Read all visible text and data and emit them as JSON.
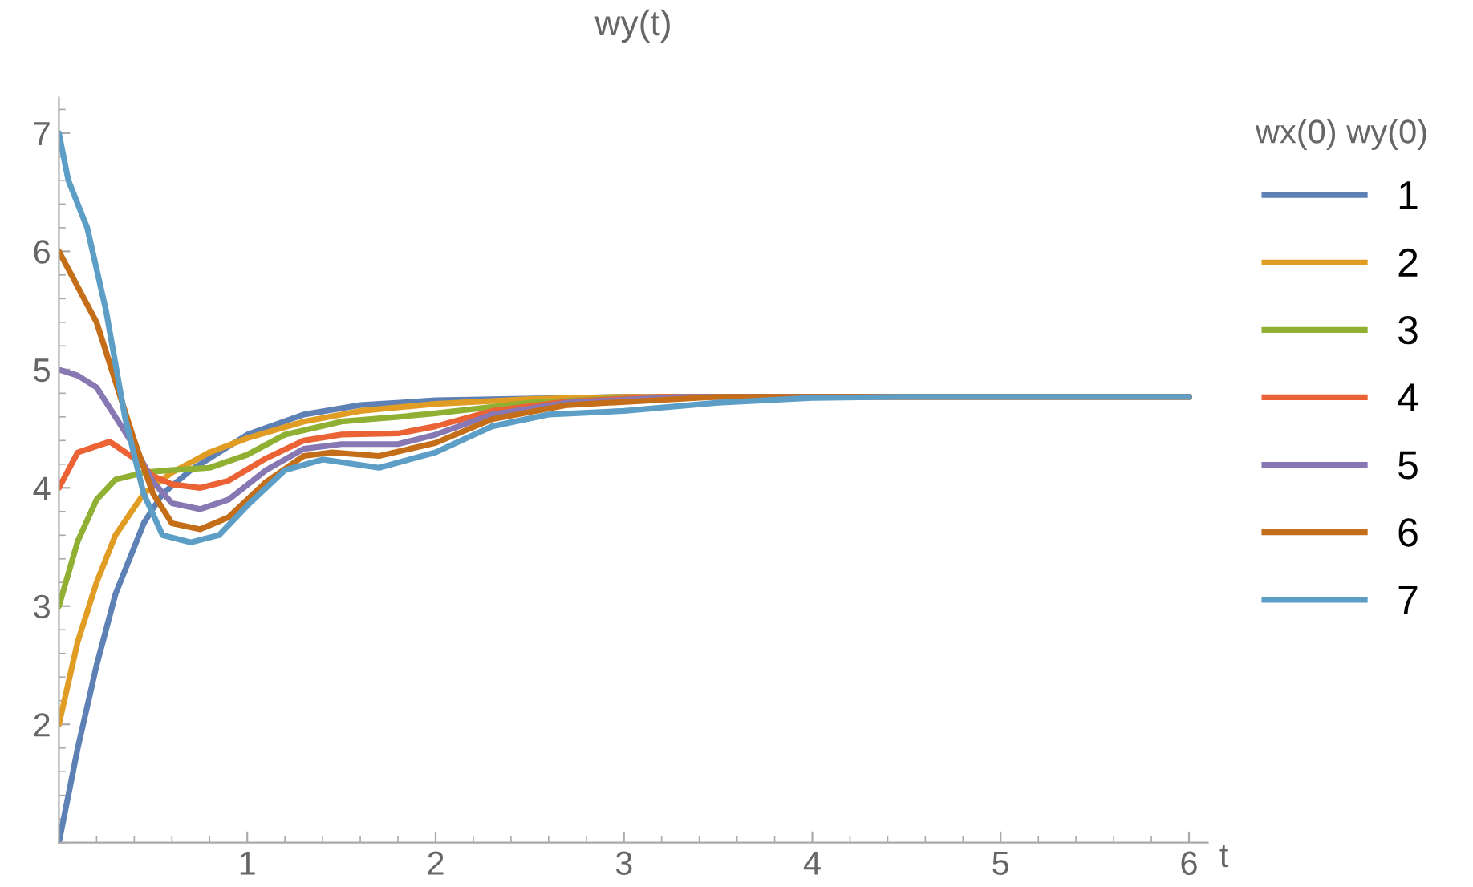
{
  "chart_data": {
    "type": "line",
    "title": "wy(t)",
    "xlabel": "t",
    "legend_title": "wx(0) wy(0)",
    "legend": "right",
    "grid": false,
    "xlim": [
      0,
      6.1
    ],
    "ylim": [
      1,
      7.3
    ],
    "xticks": [
      1,
      2,
      3,
      4,
      5,
      6
    ],
    "yticks": [
      2,
      3,
      4,
      5,
      6,
      7
    ],
    "series": [
      {
        "name": "1",
        "color": "#5e81b5",
        "x": [
          0,
          0.1,
          0.2,
          0.3,
          0.45,
          0.55,
          0.7,
          1,
          1.3,
          1.6,
          2,
          3,
          6
        ],
        "values": [
          1,
          1.8,
          2.5,
          3.1,
          3.7,
          3.95,
          4.15,
          4.45,
          4.62,
          4.7,
          4.74,
          4.77,
          4.77
        ]
      },
      {
        "name": "2",
        "color": "#e19c24",
        "x": [
          0,
          0.1,
          0.2,
          0.3,
          0.45,
          0.6,
          0.8,
          1,
          1.3,
          1.6,
          2,
          2.5,
          3,
          6
        ],
        "values": [
          2,
          2.7,
          3.2,
          3.6,
          3.95,
          4.13,
          4.3,
          4.42,
          4.56,
          4.65,
          4.71,
          4.75,
          4.77,
          4.77
        ]
      },
      {
        "name": "3",
        "color": "#8fb032",
        "x": [
          0,
          0.1,
          0.2,
          0.3,
          0.45,
          0.6,
          0.8,
          1,
          1.2,
          1.5,
          1.8,
          2,
          2.5,
          3,
          3.5,
          6
        ],
        "values": [
          3,
          3.55,
          3.9,
          4.07,
          4.13,
          4.15,
          4.17,
          4.28,
          4.45,
          4.56,
          4.6,
          4.63,
          4.72,
          4.76,
          4.77,
          4.77
        ]
      },
      {
        "name": "4",
        "color": "#eb6235",
        "x": [
          0,
          0.1,
          0.27,
          0.4,
          0.5,
          0.6,
          0.75,
          0.9,
          1.1,
          1.3,
          1.5,
          1.8,
          2,
          2.3,
          2.7,
          3.2,
          6
        ],
        "values": [
          4,
          4.3,
          4.39,
          4.25,
          4.1,
          4.03,
          4.0,
          4.06,
          4.25,
          4.4,
          4.45,
          4.46,
          4.52,
          4.65,
          4.73,
          4.77,
          4.77
        ]
      },
      {
        "name": "5",
        "color": "#8778b3",
        "x": [
          0,
          0.1,
          0.2,
          0.3,
          0.4,
          0.5,
          0.6,
          0.75,
          0.9,
          1.1,
          1.3,
          1.5,
          1.8,
          2,
          2.3,
          2.7,
          3.3,
          6
        ],
        "values": [
          5,
          4.95,
          4.85,
          4.6,
          4.35,
          4.05,
          3.87,
          3.82,
          3.9,
          4.15,
          4.33,
          4.37,
          4.37,
          4.45,
          4.62,
          4.72,
          4.77,
          4.77
        ]
      },
      {
        "name": "6",
        "color": "#c56e1a",
        "x": [
          0,
          0.1,
          0.2,
          0.3,
          0.4,
          0.5,
          0.6,
          0.75,
          0.9,
          1.1,
          1.3,
          1.45,
          1.7,
          2,
          2.3,
          2.7,
          3.5,
          6
        ],
        "values": [
          6,
          5.7,
          5.4,
          4.9,
          4.4,
          3.95,
          3.7,
          3.65,
          3.75,
          4.05,
          4.27,
          4.3,
          4.27,
          4.38,
          4.58,
          4.7,
          4.77,
          4.77
        ]
      },
      {
        "name": "7",
        "color": "#5d9ec7",
        "x": [
          0,
          0.05,
          0.15,
          0.25,
          0.35,
          0.45,
          0.55,
          0.7,
          0.85,
          1.0,
          1.2,
          1.4,
          1.7,
          2,
          2.3,
          2.6,
          3,
          3.5,
          4,
          4.5,
          6
        ],
        "values": [
          7,
          6.6,
          6.2,
          5.5,
          4.6,
          3.95,
          3.6,
          3.54,
          3.6,
          3.85,
          4.15,
          4.24,
          4.17,
          4.3,
          4.52,
          4.62,
          4.65,
          4.72,
          4.76,
          4.77,
          4.77
        ]
      }
    ]
  }
}
